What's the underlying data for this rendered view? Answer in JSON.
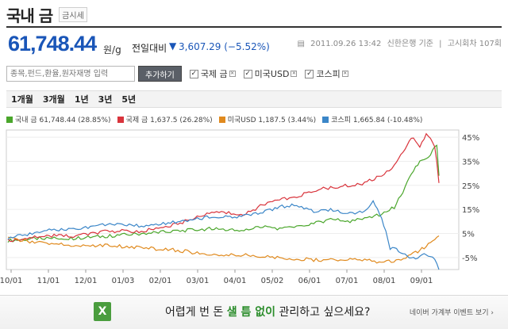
{
  "header": {
    "title": "국내 금",
    "badge": "금시세"
  },
  "price": {
    "value": "61,748.44",
    "unit": "원/g",
    "change_label": "전일대비",
    "change_value": "3,607.29 (−5.52%)"
  },
  "meta": {
    "timestamp": "2011.09.26 13:42",
    "source": "신한은행 기준",
    "round": "고시회차 107회"
  },
  "search": {
    "placeholder": "종목,펀드,환율,원자재명 입력",
    "add_button": "추가하기"
  },
  "compare": [
    {
      "label": "국제 금",
      "checked": true
    },
    {
      "label": "미국USD",
      "checked": true
    },
    {
      "label": "코스피",
      "checked": true
    }
  ],
  "periods": [
    "1개월",
    "3개월",
    "1년",
    "3년",
    "5년"
  ],
  "legend": [
    {
      "text": "국내 금 61,748.44 (28.85%)",
      "color": "#4aa62b"
    },
    {
      "text": "국제 금 1,637.5 (26.28%)",
      "color": "#d9343c"
    },
    {
      "text": "미국USD 1,187.5 (3.44%)",
      "color": "#e08a1e"
    },
    {
      "text": "코스피 1,665.84 (-10.48%)",
      "color": "#3b86c8"
    }
  ],
  "banner": {
    "pre": "어렵게 번 돈 ",
    "highlight": "샐 틈 없이",
    "post": " 관리하고 싶으세요?",
    "link": "네이버 가계부 이벤트 보기 ›",
    "icon": "X"
  },
  "chart_data": {
    "type": "line",
    "x_ticks": [
      "10/01",
      "11/01",
      "12/01",
      "01/03",
      "02/01",
      "03/01",
      "04/01",
      "05/02",
      "06/01",
      "07/01",
      "08/01",
      "09/01"
    ],
    "y_ticks": [
      "45%",
      "35%",
      "25%",
      "15%",
      "5%",
      "-5%"
    ],
    "ylim": [
      -10,
      48
    ],
    "series": [
      {
        "name": "국내 금",
        "color": "#4aa62b",
        "points": [
          [
            0,
            2
          ],
          [
            8,
            3
          ],
          [
            16,
            3
          ],
          [
            24,
            4
          ],
          [
            32,
            5
          ],
          [
            40,
            6
          ],
          [
            48,
            7
          ],
          [
            55,
            6
          ],
          [
            60,
            8
          ],
          [
            64,
            7
          ],
          [
            68,
            8
          ],
          [
            72,
            9
          ],
          [
            76,
            11
          ],
          [
            80,
            10
          ],
          [
            84,
            11
          ],
          [
            88,
            13
          ],
          [
            91,
            16
          ],
          [
            93,
            22
          ],
          [
            95,
            30
          ],
          [
            97,
            35
          ],
          [
            99,
            36
          ],
          [
            100,
            40
          ],
          [
            100.5,
            41
          ],
          [
            101,
            42
          ],
          [
            101.5,
            29
          ]
        ]
      },
      {
        "name": "국제 금",
        "color": "#d9343c",
        "points": [
          [
            0,
            2
          ],
          [
            8,
            4
          ],
          [
            16,
            4
          ],
          [
            24,
            6
          ],
          [
            32,
            6
          ],
          [
            40,
            9
          ],
          [
            48,
            14
          ],
          [
            56,
            13
          ],
          [
            60,
            17
          ],
          [
            64,
            19
          ],
          [
            68,
            20
          ],
          [
            72,
            23
          ],
          [
            76,
            24
          ],
          [
            80,
            25
          ],
          [
            84,
            26
          ],
          [
            88,
            29
          ],
          [
            91,
            33
          ],
          [
            93,
            39
          ],
          [
            95,
            45
          ],
          [
            97,
            41
          ],
          [
            98.5,
            46
          ],
          [
            99.5,
            44
          ],
          [
            100.5,
            41
          ],
          [
            101,
            35
          ],
          [
            101.5,
            26
          ]
        ]
      },
      {
        "name": "미국USD",
        "color": "#e08a1e",
        "points": [
          [
            0,
            3
          ],
          [
            8,
            1
          ],
          [
            16,
            0
          ],
          [
            24,
            0
          ],
          [
            32,
            -1
          ],
          [
            40,
            -2
          ],
          [
            48,
            -4
          ],
          [
            56,
            -4
          ],
          [
            64,
            -5
          ],
          [
            72,
            -6
          ],
          [
            80,
            -6
          ],
          [
            84,
            -6
          ],
          [
            88,
            -7
          ],
          [
            92,
            -6
          ],
          [
            96,
            -3
          ],
          [
            98,
            -1
          ],
          [
            99.5,
            1
          ],
          [
            100.5,
            2
          ],
          [
            101,
            3.5
          ],
          [
            101.5,
            4
          ]
        ]
      },
      {
        "name": "코스피",
        "color": "#3b86c8",
        "points": [
          [
            0,
            3
          ],
          [
            8,
            6
          ],
          [
            16,
            7
          ],
          [
            24,
            9
          ],
          [
            32,
            8
          ],
          [
            40,
            10
          ],
          [
            48,
            12
          ],
          [
            55,
            12
          ],
          [
            60,
            14
          ],
          [
            64,
            16
          ],
          [
            68,
            17
          ],
          [
            72,
            14
          ],
          [
            76,
            15
          ],
          [
            80,
            13
          ],
          [
            84,
            14
          ],
          [
            86,
            18
          ],
          [
            88,
            12
          ],
          [
            90,
            -1
          ],
          [
            92,
            -2
          ],
          [
            94,
            -4
          ],
          [
            96,
            -6
          ],
          [
            98,
            -4
          ],
          [
            99.5,
            -5
          ],
          [
            100.5,
            -6
          ],
          [
            101.5,
            -10
          ]
        ]
      }
    ]
  }
}
